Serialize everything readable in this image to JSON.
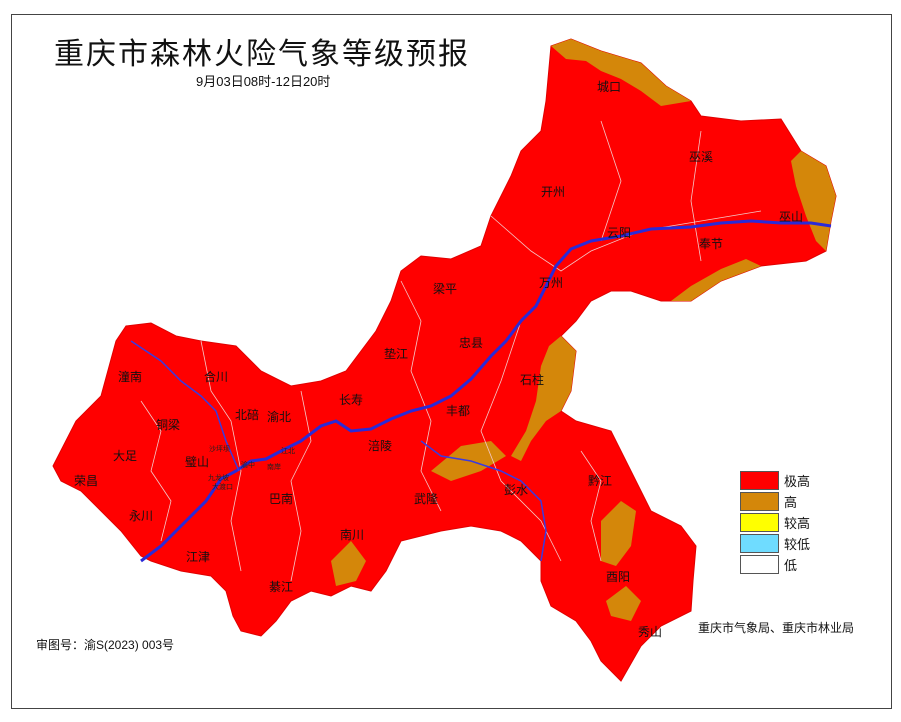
{
  "title": "重庆市森林火险气象等级预报",
  "subtitle": "9月03日08时-12日20时",
  "legend": [
    {
      "label": "极高",
      "color": "#ff0000"
    },
    {
      "label": "高",
      "color": "#d4870a"
    },
    {
      "label": "较高",
      "color": "#ffff00"
    },
    {
      "label": "较低",
      "color": "#6fdcff"
    },
    {
      "label": "低",
      "color": "#ffffff"
    }
  ],
  "agency": "重庆市气象局、重庆市林业局",
  "review_number": "审图号：渝S(2023) 003号",
  "river_color": "#2a2ad8",
  "districts": {
    "chengkou": "城口",
    "wuxi": "巫溪",
    "kaizhou": "开州",
    "yunyang": "云阳",
    "wushan": "巫山",
    "fengjie": "奉节",
    "wanzhou": "万州",
    "liangping": "梁平",
    "zhongxian": "忠县",
    "dianjiang": "垫江",
    "shizhu": "石柱",
    "tongnan": "潼南",
    "hechuan": "合川",
    "beibei": "北碚",
    "yubei": "渝北",
    "changshou": "长寿",
    "tongliang": "铜梁",
    "dazu": "大足",
    "bishan": "璧山",
    "rongchang": "荣昌",
    "yongchuan": "永川",
    "jiangjin": "江津",
    "banan": "巴南",
    "fuling": "涪陵",
    "fengdu": "丰都",
    "wulong": "武隆",
    "pengshui": "彭水",
    "qianjiang": "黔江",
    "youyang": "酉阳",
    "xiushan": "秀山",
    "nanchuan": "南川",
    "qijiang": "綦江",
    "shapingba": "沙坪坝",
    "jiangbei": "江北",
    "nanan": "南岸",
    "jiulongpo": "九龙坡",
    "dadukou": "大渡口",
    "yuzhong": "渝中"
  }
}
